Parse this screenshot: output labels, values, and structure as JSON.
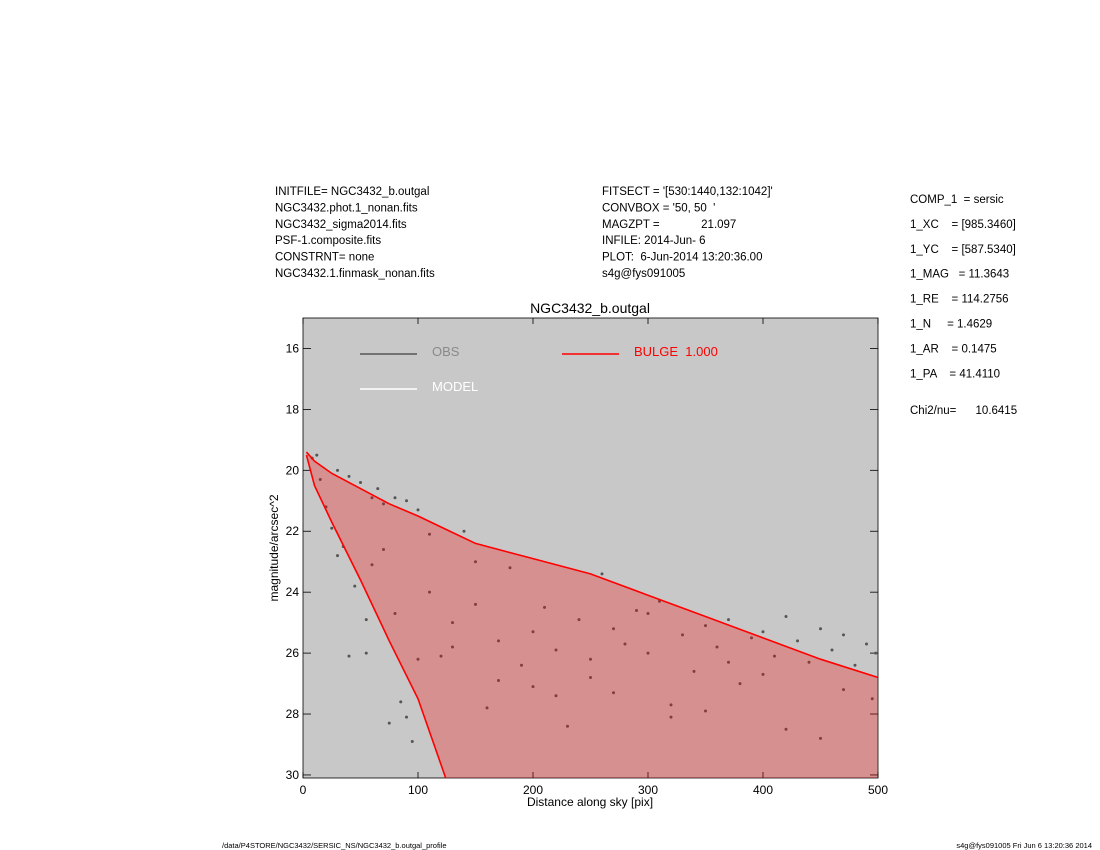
{
  "header": {
    "left": [
      "INITFILE= NGC3432_b.outgal",
      "NGC3432.phot.1_nonan.fits",
      "NGC3432_sigma2014.fits",
      "PSF-1.composite.fits",
      "CONSTRNT= none",
      "NGC3432.1.finmask_nonan.fits"
    ],
    "middle": [
      "FITSECT = '[530:1440,132:1042]'",
      "CONVBOX = '50, 50  '",
      "MAGZPT =             21.097",
      "INFILE: 2014-Jun- 6",
      "PLOT:  6-Jun-2014 13:20:36.00",
      "s4g@fys091005"
    ]
  },
  "params": [
    "COMP_1  = sersic",
    "1_XC    = [985.3460]",
    "1_YC    = [587.5340]",
    "1_MAG   = 11.3643",
    "1_RE    = 114.2756",
    "1_N     = 1.4629",
    "1_AR    = 0.1475",
    "1_PA    = 41.4110"
  ],
  "chi2": "Chi2/nu=      10.6415",
  "footer_left": "/data/P4STORE/NGC3432/SERSIC_NS/NGC3432_b.outgal_profile",
  "footer_right": "s4g@fys091005  Fri Jun  6 13:20:36 2014",
  "chart_data": {
    "type": "scatter",
    "title": "NGC3432_b.outgal",
    "xlabel": "Distance along sky [pix]",
    "ylabel": "magnitude/arcsec^2",
    "xlim": [
      0,
      500
    ],
    "xticks": [
      0,
      100,
      200,
      300,
      400,
      500
    ],
    "ylim": [
      30.1,
      15
    ],
    "yticks": [
      16,
      18,
      20,
      22,
      24,
      26,
      28,
      30
    ],
    "series": [
      {
        "name": "OBS",
        "color": "#555555",
        "x": [
          8,
          12,
          15,
          20,
          25,
          30,
          35,
          40,
          45,
          50,
          55,
          60,
          65,
          70,
          75,
          80,
          85,
          90,
          95,
          100,
          110,
          120,
          130,
          140,
          150,
          160,
          170,
          180,
          190,
          200,
          210,
          220,
          230,
          240,
          250,
          260,
          270,
          280,
          290,
          300,
          310,
          320,
          330,
          340,
          350,
          360,
          370,
          380,
          390,
          400,
          410,
          420,
          430,
          440,
          450,
          460,
          470,
          480,
          490,
          498,
          60,
          80,
          100,
          130,
          170,
          220,
          270,
          320,
          370,
          420,
          470,
          40,
          70,
          110,
          150,
          200,
          250,
          300,
          350,
          400,
          450,
          495,
          30,
          55,
          90
        ],
        "values": [
          19.6,
          19.5,
          20.3,
          21.2,
          21.9,
          20.0,
          22.5,
          20.2,
          23.8,
          20.4,
          24.9,
          20.9,
          20.6,
          21.1,
          28.3,
          20.9,
          27.6,
          21.0,
          28.9,
          21.3,
          22.1,
          26.1,
          25.0,
          22.0,
          24.4,
          27.8,
          25.6,
          23.2,
          26.4,
          27.1,
          24.5,
          25.9,
          28.4,
          24.9,
          26.2,
          23.4,
          27.3,
          25.7,
          24.6,
          26.0,
          24.3,
          28.1,
          25.4,
          26.6,
          25.1,
          25.8,
          24.9,
          27.0,
          25.5,
          25.3,
          26.1,
          24.8,
          25.6,
          26.3,
          25.2,
          25.9,
          25.4,
          26.4,
          25.7,
          26.0,
          23.1,
          24.7,
          26.2,
          25.8,
          26.9,
          27.4,
          25.2,
          27.7,
          26.3,
          28.5,
          27.2,
          26.1,
          22.6,
          24.0,
          23.0,
          25.3,
          26.8,
          24.7,
          27.9,
          26.7,
          28.8,
          27.5,
          22.8,
          26.0,
          28.1
        ]
      },
      {
        "name": "MODEL",
        "color": "#ffffff"
      },
      {
        "name": "BULGE  1.000",
        "color": "#ff0000",
        "x": [
          3,
          10,
          25,
          50,
          75,
          100,
          125,
          150,
          200,
          250,
          300,
          350,
          400,
          450,
          500
        ],
        "values": [
          19.4,
          19.7,
          20.1,
          20.6,
          21.1,
          21.5,
          21.95,
          22.4,
          22.9,
          23.4,
          24.1,
          24.8,
          25.5,
          26.2,
          26.8
        ],
        "lower": [
          19.5,
          20.5,
          21.7,
          23.6,
          25.6,
          27.5,
          30.2,
          null,
          null,
          null,
          null,
          null,
          null,
          null,
          null
        ]
      }
    ]
  }
}
